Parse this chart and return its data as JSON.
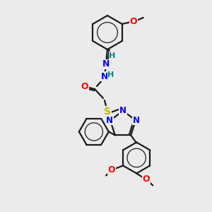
{
  "background_color": "#ebebeb",
  "bond_color": "#1a1a1a",
  "atom_colors": {
    "N": "#0000ff",
    "O": "#ff0000",
    "S": "#b8b800",
    "H_label": "#008080",
    "C": "#1a1a1a"
  },
  "figsize": [
    3.0,
    3.0
  ],
  "dpi": 100,
  "lw": 1.6,
  "fs": 9.0
}
